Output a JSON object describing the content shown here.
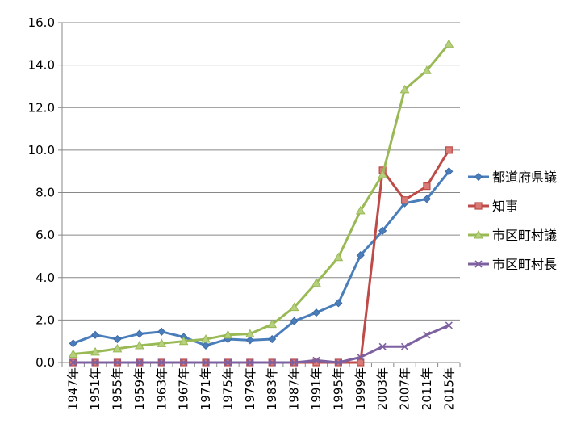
{
  "chart_data": {
    "type": "line",
    "title": "",
    "xlabel": "",
    "ylabel": "",
    "categories": [
      "1947年",
      "1951年",
      "1955年",
      "1959年",
      "1963年",
      "1967年",
      "1971年",
      "1975年",
      "1979年",
      "1983年",
      "1987年",
      "1991年",
      "1995年",
      "1999年",
      "2003年",
      "2007年",
      "2011年",
      "2015年"
    ],
    "ylim": [
      0,
      16
    ],
    "yticks": [
      "0.0",
      "2.0",
      "4.0",
      "6.0",
      "8.0",
      "10.0",
      "12.0",
      "14.0",
      "16.0"
    ],
    "grid": "horizontal",
    "legend_position": "right",
    "series": [
      {
        "name": "都道府県議",
        "color": "#4a7ebb",
        "marker": "diamond",
        "values": [
          0.9,
          1.3,
          1.1,
          1.35,
          1.45,
          1.2,
          0.8,
          1.1,
          1.05,
          1.1,
          1.95,
          2.35,
          2.8,
          5.05,
          6.2,
          7.5,
          7.7,
          9.0
        ]
      },
      {
        "name": "知事",
        "color": "#be4b48",
        "marker": "square",
        "values": [
          0.0,
          0.0,
          0.0,
          0.0,
          0.0,
          0.0,
          0.0,
          0.0,
          0.0,
          0.0,
          0.0,
          0.0,
          0.0,
          0.0,
          9.05,
          7.65,
          8.3,
          10.0
        ]
      },
      {
        "name": "市区町村議",
        "color": "#98b954",
        "marker": "triangle",
        "values": [
          0.4,
          0.5,
          0.65,
          0.8,
          0.9,
          1.0,
          1.1,
          1.3,
          1.35,
          1.8,
          2.6,
          3.75,
          4.95,
          7.15,
          8.85,
          12.85,
          13.75,
          15.0
        ]
      },
      {
        "name": "市区町村長",
        "color": "#7d60a0",
        "marker": "x",
        "values": [
          0.0,
          0.0,
          0.0,
          0.0,
          0.0,
          0.0,
          0.0,
          0.0,
          0.0,
          0.0,
          0.0,
          0.1,
          0.0,
          0.25,
          0.75,
          0.75,
          1.3,
          1.75
        ]
      }
    ]
  }
}
